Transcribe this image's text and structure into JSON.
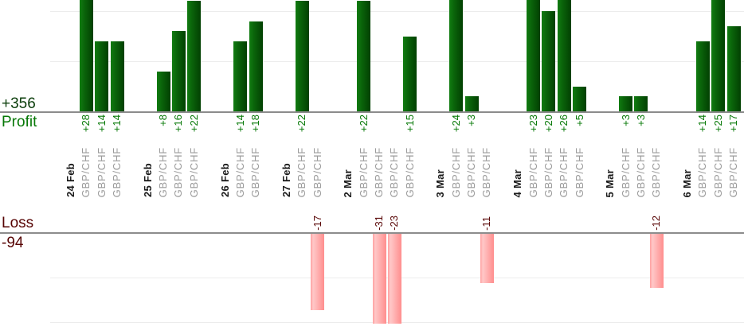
{
  "chart_data": {
    "type": "bar",
    "description": "Daily trade profit/loss bar chart split into a Profit pane (green bars, values in pips) and a Loss pane (pink bars), one bar per trade, grouped by trading day",
    "profit_section": {
      "total_label": "+356",
      "axis_label": "Profit"
    },
    "loss_section": {
      "axis_label": "Loss",
      "total_label": "-94"
    },
    "groups": [
      {
        "date": "24 Feb",
        "trades": [
          {
            "symbol": "GBP/CHF",
            "pips": 28
          },
          {
            "symbol": "GBP/CHF",
            "pips": 14
          },
          {
            "symbol": "GBP/CHF",
            "pips": 14
          }
        ]
      },
      {
        "date": "25 Feb",
        "trades": [
          {
            "symbol": "GBP/CHF",
            "pips": 8
          },
          {
            "symbol": "GBP/CHF",
            "pips": 16
          },
          {
            "symbol": "GBP/CHF",
            "pips": 22
          }
        ]
      },
      {
        "date": "26 Feb",
        "trades": [
          {
            "symbol": "GBP/CHF",
            "pips": 14
          },
          {
            "symbol": "GBP/CHF",
            "pips": 18
          }
        ]
      },
      {
        "date": "27 Feb",
        "trades": [
          {
            "symbol": "GBP/CHF",
            "pips": 22
          },
          {
            "symbol": "GBP/CHF",
            "pips": -17
          }
        ]
      },
      {
        "date": "2 Mar",
        "trades": [
          {
            "symbol": "GBP/CHF",
            "pips": 22
          },
          {
            "symbol": "GBP/CHF",
            "pips": -31
          },
          {
            "symbol": "GBP/CHF",
            "pips": -23
          },
          {
            "symbol": "GBP/CHF",
            "pips": 15
          }
        ]
      },
      {
        "date": "3 Mar",
        "trades": [
          {
            "symbol": "GBP/CHF",
            "pips": 24
          },
          {
            "symbol": "GBP/CHF",
            "pips": 3
          },
          {
            "symbol": "GBP/CHF",
            "pips": -11
          }
        ]
      },
      {
        "date": "4 Mar",
        "trades": [
          {
            "symbol": "GBP/CHF",
            "pips": 23
          },
          {
            "symbol": "GBP/CHF",
            "pips": 20
          },
          {
            "symbol": "GBP/CHF",
            "pips": 26
          },
          {
            "symbol": "GBP/CHF",
            "pips": 5
          }
        ]
      },
      {
        "date": "5 Mar",
        "trades": [
          {
            "symbol": "GBP/CHF",
            "pips": 3
          },
          {
            "symbol": "GBP/CHF",
            "pips": 3
          },
          {
            "symbol": "GBP/CHF",
            "pips": -12
          }
        ]
      },
      {
        "date": "6 Mar",
        "trades": [
          {
            "symbol": "GBP/CHF",
            "pips": 14
          },
          {
            "symbol": "GBP/CHF",
            "pips": 25
          },
          {
            "symbol": "GBP/CHF",
            "pips": 17
          }
        ]
      }
    ],
    "profit_axis": {
      "gridline_values": [
        10,
        20
      ],
      "visible_max": 22.2,
      "bars_clipped_above": true
    },
    "loss_axis": {
      "gridline_values": [
        -10,
        -20
      ],
      "visible_min": -20,
      "bars_clipped_below": true
    },
    "legend_position": "none",
    "grid": true
  },
  "colors": {
    "profit_bar_left": "#117c11",
    "profit_bar_right": "#024002",
    "loss_bar_light": "#ffc8c8",
    "loss_bar_dark": "#ff8e8e",
    "profit_text": "#067806",
    "profit_total_text": "#0a3d0a",
    "loss_text": "#570404",
    "date_text": "#1a1a1a",
    "symbol_text": "#9a9a9a",
    "axis_line": "#8c8c8c",
    "gridline": "#ececec"
  }
}
